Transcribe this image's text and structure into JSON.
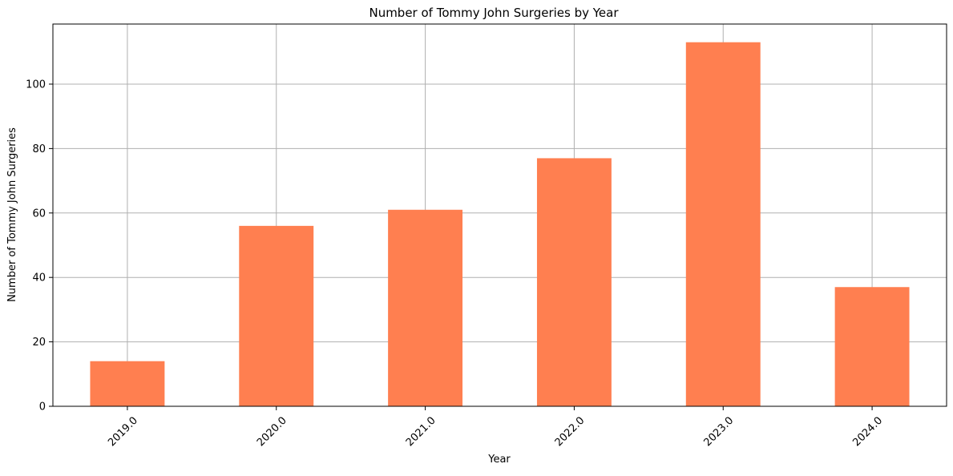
{
  "chart_data": {
    "type": "bar",
    "title": "Number of Tommy John Surgeries by Year",
    "xlabel": "Year",
    "ylabel": "Number of Tommy John Surgeries",
    "categories": [
      "2019.0",
      "2020.0",
      "2021.0",
      "2022.0",
      "2023.0",
      "2024.0"
    ],
    "values": [
      14,
      56,
      61,
      77,
      113,
      37
    ],
    "ylim": [
      0,
      118.65
    ],
    "yticks": [
      0,
      20,
      40,
      60,
      80,
      100
    ],
    "ytick_labels": [
      "0",
      "20",
      "40",
      "60",
      "80",
      "100"
    ],
    "grid": true,
    "bar_color": "#ff7f50",
    "grid_color": "#b0b0b0"
  }
}
